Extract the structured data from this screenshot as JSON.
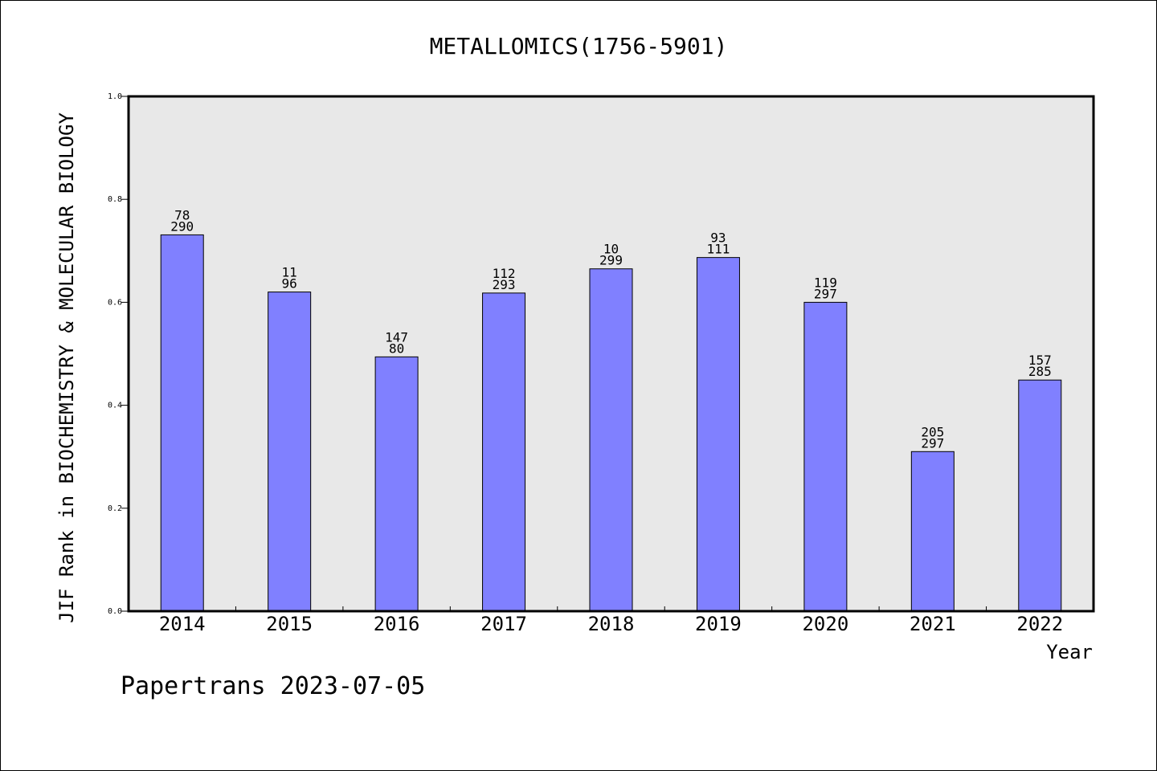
{
  "chart_data": {
    "type": "bar",
    "title": "METALLOMICS(1756-5901)",
    "xlabel": "Year",
    "ylabel": "JIF Rank in BIOCHEMISTRY & MOLECULAR BIOLOGY",
    "ylim": [
      0,
      1.0
    ],
    "yticks": [
      "0.0",
      "0.2",
      "0.4",
      "0.6",
      "0.8",
      "1.0"
    ],
    "categories": [
      "2014",
      "2015",
      "2016",
      "2017",
      "2018",
      "2019",
      "2020",
      "2021",
      "2022"
    ],
    "values": [
      0.731,
      0.62,
      0.494,
      0.618,
      0.665,
      0.687,
      0.6,
      0.31,
      0.449
    ],
    "rank_labels": [
      "78",
      "11",
      "147",
      "112",
      "10",
      "93",
      "119",
      "205",
      "157"
    ],
    "total_labels": [
      "290",
      "96",
      "80",
      "293",
      "299",
      "111",
      "297",
      "297",
      "285"
    ],
    "grid": false,
    "colors": {
      "bar": "#8080ff",
      "plot_background": "#e8e8e8",
      "axis": "#000000"
    }
  },
  "footer": "Papertrans 2023-07-05"
}
